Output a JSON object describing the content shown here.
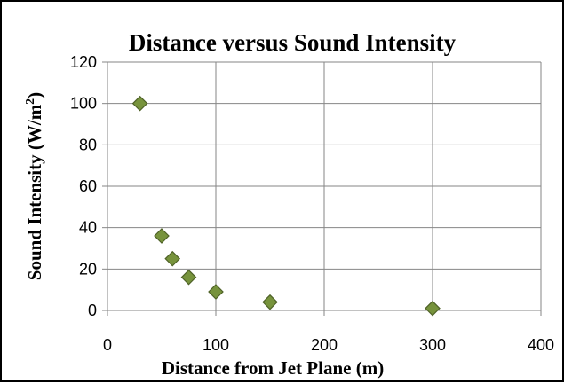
{
  "chart_data": {
    "type": "scatter",
    "title": "Distance versus Sound Intensity",
    "xlabel": "Distance from Jet Plane (m)",
    "ylabel_main": "Sound Intensity (W/m",
    "ylabel_sup": "2",
    "ylabel_end": ")",
    "xlim": [
      0,
      400
    ],
    "ylim": [
      0,
      120
    ],
    "x_ticks": [
      0,
      100,
      200,
      300,
      400
    ],
    "y_ticks": [
      0,
      20,
      40,
      60,
      80,
      100,
      120
    ],
    "grid": true,
    "legend": "none",
    "marker": "diamond",
    "series": [
      {
        "color": "#77933C",
        "edge_color": "#4F6228",
        "points": [
          {
            "x": 30,
            "y": 100
          },
          {
            "x": 50,
            "y": 36
          },
          {
            "x": 60,
            "y": 25
          },
          {
            "x": 75,
            "y": 16
          },
          {
            "x": 100,
            "y": 9
          },
          {
            "x": 150,
            "y": 4
          },
          {
            "x": 300,
            "y": 1
          }
        ]
      }
    ]
  }
}
